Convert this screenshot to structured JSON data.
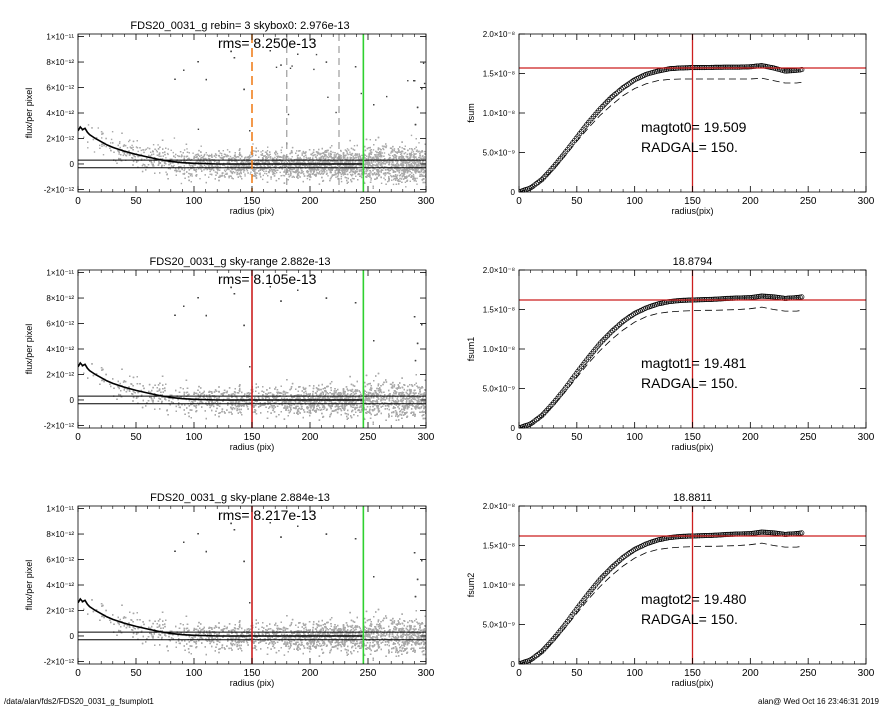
{
  "footer": {
    "left": "/data/alan/fds2/FDS20_0031_g_fsumplot1",
    "right": "alan@  Wed Oct 16 23:46:31 2019"
  },
  "colors": {
    "scatter": "#a8a8a8",
    "profile": "#000000",
    "red": "#cc1f1f",
    "green": "#2fd12f",
    "orange": "#f08020"
  },
  "chart_data": [
    {
      "type": "scatter",
      "title": "FDS20_0031_g rebin= 3    skybox0:  2.976e-13",
      "annotation": "rms= 8.250e-13",
      "xlabel": "radius (pix)",
      "ylabel": "flux/per pixel",
      "xlim": [
        0,
        300
      ],
      "ylim": [
        -2.2e-12,
        1.02e-11
      ],
      "xticks": [
        "0",
        "50",
        "100",
        "150",
        "200",
        "250",
        "300"
      ],
      "yticks": [
        "-2×10⁻¹²",
        "0",
        "2×10⁻¹²",
        "4×10⁻¹²",
        "6×10⁻¹²",
        "8×10⁻¹²",
        "1×10⁻¹¹"
      ],
      "ytick_values": [
        -2e-12,
        0,
        2e-12,
        4e-12,
        6e-12,
        8e-12,
        1e-11
      ],
      "hlines": [
        3e-13,
        -3e-13
      ],
      "vlines": [
        {
          "x": 150,
          "color": "orange",
          "style": "dashed"
        },
        {
          "x": 180,
          "color": "gray",
          "style": "dashed"
        },
        {
          "x": 225,
          "color": "gray",
          "style": "dashed"
        },
        {
          "x": 246,
          "color": "green",
          "style": "solid"
        }
      ],
      "profile_x": [
        0,
        2,
        4,
        6,
        8,
        10,
        15,
        20,
        25,
        30,
        40,
        50,
        60,
        70,
        80,
        90,
        100,
        120,
        150,
        180,
        210,
        245
      ],
      "profile_y": [
        2.6e-12,
        2.9e-12,
        2.7e-12,
        2.8e-12,
        2.5e-12,
        2.3e-12,
        2e-12,
        1.75e-12,
        1.5e-12,
        1.3e-12,
        1e-12,
        7.5e-13,
        5.5e-13,
        3.5e-13,
        2e-13,
        1e-13,
        5e-14,
        0,
        0,
        0,
        0,
        0
      ]
    },
    {
      "type": "line",
      "title": "",
      "xlabel": "radius(pix)",
      "ylabel": "fsum",
      "xlim": [
        0,
        300
      ],
      "ylim": [
        0,
        2e-08
      ],
      "xticks": [
        "0",
        "50",
        "100",
        "150",
        "200",
        "250",
        "300"
      ],
      "yticks": [
        "0",
        "5.0×10⁻⁹",
        "1.0×10⁻⁸",
        "1.5×10⁻⁸",
        "2.0×10⁻⁸"
      ],
      "ytick_values": [
        0,
        5e-09,
        1e-08,
        1.5e-08,
        2e-08
      ],
      "annotations": [
        "magtot0=  19.509",
        "RADGAL=     150."
      ],
      "hline": 1.57e-08,
      "vline": 150,
      "x": [
        0,
        10,
        20,
        30,
        40,
        50,
        60,
        70,
        80,
        90,
        100,
        110,
        120,
        130,
        140,
        150,
        160,
        170,
        180,
        190,
        200,
        210,
        220,
        230,
        240,
        245
      ],
      "y": [
        0,
        5e-10,
        1.6e-09,
        3.2e-09,
        5e-09,
        6.9e-09,
        8.8e-09,
        1.05e-08,
        1.2e-08,
        1.32e-08,
        1.42e-08,
        1.49e-08,
        1.53e-08,
        1.56e-08,
        1.57e-08,
        1.575e-08,
        1.575e-08,
        1.578e-08,
        1.58e-08,
        1.58e-08,
        1.585e-08,
        1.6e-08,
        1.57e-08,
        1.53e-08,
        1.54e-08,
        1.55e-08
      ],
      "y_dashed": [
        0,
        4.6e-10,
        1.45e-09,
        2.9e-09,
        4.6e-09,
        6.4e-09,
        8.1e-09,
        9.7e-09,
        1.1e-08,
        1.22e-08,
        1.31e-08,
        1.37e-08,
        1.41e-08,
        1.425e-08,
        1.43e-08,
        1.43e-08,
        1.43e-08,
        1.43e-08,
        1.43e-08,
        1.43e-08,
        1.43e-08,
        1.44e-08,
        1.41e-08,
        1.38e-08,
        1.38e-08,
        1.39e-08
      ]
    },
    {
      "type": "scatter",
      "title": "FDS20_0031_g sky-range  2.882e-13",
      "annotation": "rms= 8.105e-13",
      "xlabel": "radius (pix)",
      "ylabel": "flux/per pixel",
      "xlim": [
        0,
        300
      ],
      "ylim": [
        -2.2e-12,
        1.02e-11
      ],
      "xticks": [
        "0",
        "50",
        "100",
        "150",
        "200",
        "250",
        "300"
      ],
      "yticks": [
        "-2×10⁻¹²",
        "0",
        "2×10⁻¹²",
        "4×10⁻¹²",
        "6×10⁻¹²",
        "8×10⁻¹²",
        "1×10⁻¹¹"
      ],
      "ytick_values": [
        -2e-12,
        0,
        2e-12,
        4e-12,
        6e-12,
        8e-12,
        1e-11
      ],
      "hlines": [
        3e-13,
        -3e-13
      ],
      "vlines": [
        {
          "x": 150,
          "color": "red",
          "style": "solid"
        },
        {
          "x": 246,
          "color": "green",
          "style": "solid"
        }
      ],
      "profile_x": [
        0,
        2,
        4,
        6,
        8,
        10,
        15,
        20,
        25,
        30,
        40,
        50,
        60,
        70,
        80,
        90,
        100,
        120,
        150,
        180,
        210,
        245
      ],
      "profile_y": [
        2.6e-12,
        2.9e-12,
        2.7e-12,
        2.8e-12,
        2.5e-12,
        2.3e-12,
        2e-12,
        1.75e-12,
        1.5e-12,
        1.3e-12,
        1e-12,
        7.5e-13,
        5.5e-13,
        3.5e-13,
        2e-13,
        1e-13,
        5e-14,
        0,
        0,
        0,
        0,
        0
      ]
    },
    {
      "type": "line",
      "title": "18.8794",
      "xlabel": "radius(pix)",
      "ylabel": "fsum1",
      "xlim": [
        0,
        300
      ],
      "ylim": [
        0,
        2e-08
      ],
      "xticks": [
        "0",
        "50",
        "100",
        "150",
        "200",
        "250",
        "300"
      ],
      "yticks": [
        "0",
        "5.0×10⁻⁹",
        "1.0×10⁻⁸",
        "1.5×10⁻⁸",
        "2.0×10⁻⁸"
      ],
      "ytick_values": [
        0,
        5e-09,
        1e-08,
        1.5e-08,
        2e-08
      ],
      "annotations": [
        "magtot1=  19.481",
        "RADGAL=     150."
      ],
      "hline": 1.62e-08,
      "vline": 150,
      "x": [
        0,
        10,
        20,
        30,
        40,
        50,
        60,
        70,
        80,
        90,
        100,
        110,
        120,
        130,
        140,
        150,
        160,
        170,
        180,
        190,
        200,
        210,
        220,
        230,
        240,
        245
      ],
      "y": [
        0,
        5e-10,
        1.6e-09,
        3.2e-09,
        5e-09,
        7e-09,
        8.9e-09,
        1.07e-08,
        1.22e-08,
        1.35e-08,
        1.45e-08,
        1.52e-08,
        1.57e-08,
        1.6e-08,
        1.615e-08,
        1.62e-08,
        1.625e-08,
        1.63e-08,
        1.64e-08,
        1.645e-08,
        1.65e-08,
        1.67e-08,
        1.66e-08,
        1.64e-08,
        1.65e-08,
        1.66e-08
      ],
      "y_dashed": [
        0,
        4.6e-10,
        1.45e-09,
        2.9e-09,
        4.6e-09,
        6.4e-09,
        8.2e-09,
        9.8e-09,
        1.12e-08,
        1.24e-08,
        1.34e-08,
        1.41e-08,
        1.45e-08,
        1.47e-08,
        1.48e-08,
        1.485e-08,
        1.49e-08,
        1.49e-08,
        1.495e-08,
        1.5e-08,
        1.51e-08,
        1.53e-08,
        1.5e-08,
        1.48e-08,
        1.48e-08,
        1.49e-08
      ]
    },
    {
      "type": "scatter",
      "title": "FDS20_0031_g sky-plane  2.884e-13",
      "annotation": "rms= 8.217e-13",
      "xlabel": "radius (pix)",
      "ylabel": "flux/per pixel",
      "xlim": [
        0,
        300
      ],
      "ylim": [
        -2.2e-12,
        1.02e-11
      ],
      "xticks": [
        "0",
        "50",
        "100",
        "150",
        "200",
        "250",
        "300"
      ],
      "yticks": [
        "-2×10⁻¹²",
        "0",
        "2×10⁻¹²",
        "4×10⁻¹²",
        "6×10⁻¹²",
        "8×10⁻¹²",
        "1×10⁻¹¹"
      ],
      "ytick_values": [
        -2e-12,
        0,
        2e-12,
        4e-12,
        6e-12,
        8e-12,
        1e-11
      ],
      "hlines": [
        3e-13,
        -3e-13
      ],
      "vlines": [
        {
          "x": 150,
          "color": "red",
          "style": "solid"
        },
        {
          "x": 246,
          "color": "green",
          "style": "solid"
        }
      ],
      "profile_x": [
        0,
        2,
        4,
        6,
        8,
        10,
        15,
        20,
        25,
        30,
        40,
        50,
        60,
        70,
        80,
        90,
        100,
        120,
        150,
        180,
        210,
        245
      ],
      "profile_y": [
        2.6e-12,
        2.9e-12,
        2.7e-12,
        2.8e-12,
        2.5e-12,
        2.3e-12,
        2e-12,
        1.75e-12,
        1.5e-12,
        1.3e-12,
        1e-12,
        7.5e-13,
        5.5e-13,
        3.5e-13,
        2e-13,
        1e-13,
        5e-14,
        0,
        0,
        0,
        0,
        0
      ]
    },
    {
      "type": "line",
      "title": "18.8811",
      "xlabel": "radius(pix)",
      "ylabel": "fsum2",
      "xlim": [
        0,
        300
      ],
      "ylim": [
        0,
        2e-08
      ],
      "xticks": [
        "0",
        "50",
        "100",
        "150",
        "200",
        "250",
        "300"
      ],
      "yticks": [
        "0",
        "5.0×10⁻⁹",
        "1.0×10⁻⁸",
        "1.5×10⁻⁸",
        "2.0×10⁻⁸"
      ],
      "ytick_values": [
        0,
        5e-09,
        1e-08,
        1.5e-08,
        2e-08
      ],
      "annotations": [
        "magtot2=  19.480",
        "RADGAL=     150."
      ],
      "hline": 1.62e-08,
      "vline": 150,
      "x": [
        0,
        10,
        20,
        30,
        40,
        50,
        60,
        70,
        80,
        90,
        100,
        110,
        120,
        130,
        140,
        150,
        160,
        170,
        180,
        190,
        200,
        210,
        220,
        230,
        240,
        245
      ],
      "y": [
        0,
        5e-10,
        1.6e-09,
        3.2e-09,
        5e-09,
        7e-09,
        8.9e-09,
        1.07e-08,
        1.22e-08,
        1.35e-08,
        1.45e-08,
        1.52e-08,
        1.57e-08,
        1.6e-08,
        1.615e-08,
        1.62e-08,
        1.625e-08,
        1.63e-08,
        1.64e-08,
        1.645e-08,
        1.65e-08,
        1.67e-08,
        1.66e-08,
        1.64e-08,
        1.65e-08,
        1.66e-08
      ],
      "y_dashed": [
        0,
        4.6e-10,
        1.45e-09,
        2.9e-09,
        4.6e-09,
        6.4e-09,
        8.2e-09,
        9.8e-09,
        1.12e-08,
        1.24e-08,
        1.34e-08,
        1.41e-08,
        1.45e-08,
        1.47e-08,
        1.48e-08,
        1.485e-08,
        1.49e-08,
        1.49e-08,
        1.495e-08,
        1.5e-08,
        1.51e-08,
        1.53e-08,
        1.5e-08,
        1.48e-08,
        1.48e-08,
        1.49e-08
      ]
    }
  ]
}
